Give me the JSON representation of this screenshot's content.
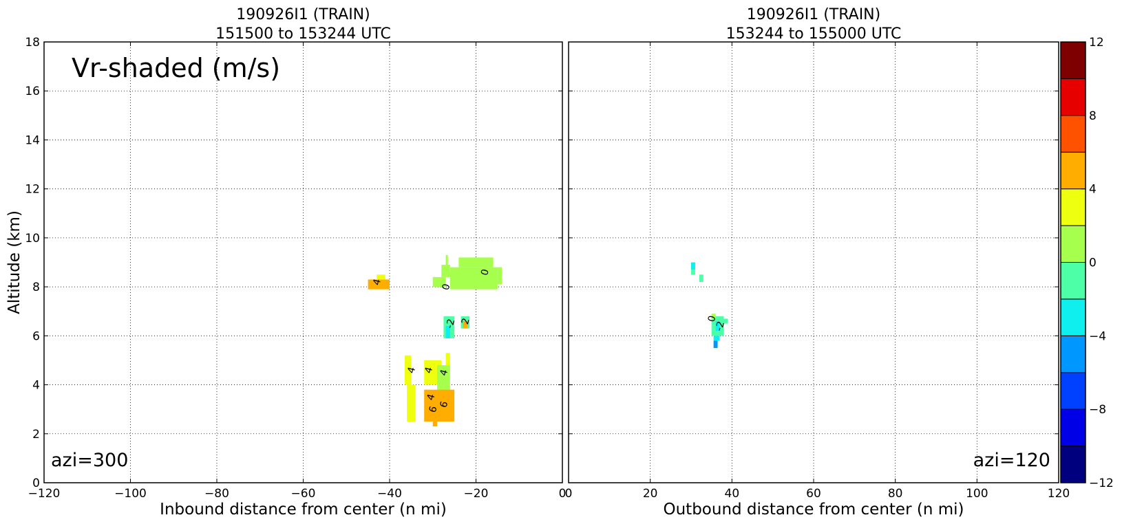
{
  "chart_data": [
    {
      "type": "heatmap",
      "title_line1": "190926I1 (TRAIN)",
      "title_line2": "151500 to 153244 UTC",
      "xlabel": "Inbound distance from center (n mi)",
      "ylabel": "Altitude (km)",
      "xlim": [
        -120,
        0
      ],
      "ylim": [
        0,
        18
      ],
      "xticks": [
        -120,
        -100,
        -80,
        -60,
        -40,
        -20,
        0
      ],
      "yticks": [
        0,
        2,
        4,
        6,
        8,
        10,
        12,
        14,
        16,
        18
      ],
      "grid": true,
      "annotation": "Vr-shaded (m/s)",
      "azimuth_label": "azi=300",
      "cells": [
        {
          "x0": -45,
          "x1": -40,
          "y0": 7.9,
          "y1": 8.3,
          "value": 5
        },
        {
          "x0": -43,
          "x1": -41,
          "y0": 8.3,
          "y1": 8.5,
          "value": 3
        },
        {
          "x0": -30,
          "x1": -27,
          "y0": 8.0,
          "y1": 8.4,
          "value": 1
        },
        {
          "x0": -28,
          "x1": -26,
          "y0": 8.4,
          "y1": 8.9,
          "value": 1
        },
        {
          "x0": -27,
          "x1": -26.5,
          "y0": 8.9,
          "y1": 9.3,
          "value": 1
        },
        {
          "x0": -26,
          "x1": -15,
          "y0": 7.9,
          "y1": 8.8,
          "value": 1
        },
        {
          "x0": -24,
          "x1": -16,
          "y0": 8.8,
          "y1": 9.2,
          "value": 1
        },
        {
          "x0": -15,
          "x1": -14,
          "y0": 8.1,
          "y1": 8.8,
          "value": 1
        },
        {
          "x0": -27.5,
          "x1": -25,
          "y0": 5.9,
          "y1": 6.8,
          "value": -1
        },
        {
          "x0": -27,
          "x1": -26,
          "y0": 5.9,
          "y1": 6.4,
          "value": -3
        },
        {
          "x0": -23.5,
          "x1": -21.5,
          "y0": 6.3,
          "y1": 6.8,
          "value": -1
        },
        {
          "x0": -23,
          "x1": -22,
          "y0": 6.3,
          "y1": 6.6,
          "value": 5
        },
        {
          "x0": -36.5,
          "x1": -35,
          "y0": 4.0,
          "y1": 5.2,
          "value": 3
        },
        {
          "x0": -36,
          "x1": -34,
          "y0": 2.5,
          "y1": 4.0,
          "value": 3
        },
        {
          "x0": -32,
          "x1": -28,
          "y0": 4.0,
          "y1": 5.0,
          "value": 3
        },
        {
          "x0": -29,
          "x1": -26,
          "y0": 3.5,
          "y1": 4.8,
          "value": 1
        },
        {
          "x0": -32,
          "x1": -25,
          "y0": 2.5,
          "y1": 3.8,
          "value": 5
        },
        {
          "x0": -30,
          "x1": -29,
          "y0": 2.3,
          "y1": 2.5,
          "value": 5
        },
        {
          "x0": -27,
          "x1": -26,
          "y0": 4.8,
          "y1": 5.3,
          "value": 3
        }
      ],
      "contour_labels": [
        {
          "x": -43,
          "y": 8.2,
          "text": "4"
        },
        {
          "x": -27,
          "y": 8.0,
          "text": "0"
        },
        {
          "x": -18,
          "y": 8.6,
          "text": "0"
        },
        {
          "x": -26,
          "y": 6.5,
          "text": "-2"
        },
        {
          "x": -22.5,
          "y": 6.6,
          "text": "2"
        },
        {
          "x": -35,
          "y": 4.6,
          "text": "4"
        },
        {
          "x": -31,
          "y": 4.6,
          "text": "4"
        },
        {
          "x": -30.5,
          "y": 3.5,
          "text": "4"
        },
        {
          "x": -27.5,
          "y": 4.5,
          "text": "4"
        },
        {
          "x": -30,
          "y": 3.0,
          "text": "6"
        },
        {
          "x": -27.5,
          "y": 3.2,
          "text": "6"
        }
      ]
    },
    {
      "type": "heatmap",
      "title_line1": "190926I1 (TRAIN)",
      "title_line2": "153244 to 155000 UTC",
      "xlabel": "Outbound distance from center (n mi)",
      "ylabel": "",
      "xlim": [
        0,
        120
      ],
      "ylim": [
        0,
        18
      ],
      "xticks": [
        0,
        20,
        40,
        60,
        80,
        100,
        120
      ],
      "yticks": [
        0,
        2,
        4,
        6,
        8,
        10,
        12,
        14,
        16,
        18
      ],
      "grid": true,
      "azimuth_label": "azi=120",
      "cells": [
        {
          "x0": 30,
          "x1": 31,
          "y0": 8.7,
          "y1": 9.0,
          "value": -3
        },
        {
          "x0": 30,
          "x1": 31,
          "y0": 8.5,
          "y1": 8.7,
          "value": -1
        },
        {
          "x0": 32,
          "x1": 33,
          "y0": 8.2,
          "y1": 8.5,
          "value": -1
        },
        {
          "x0": 35,
          "x1": 38,
          "y0": 6.0,
          "y1": 6.8,
          "value": -1
        },
        {
          "x0": 35,
          "x1": 36,
          "y0": 6.7,
          "y1": 6.9,
          "value": 1
        },
        {
          "x0": 38,
          "x1": 39,
          "y0": 6.5,
          "y1": 6.7,
          "value": -1
        },
        {
          "x0": 36,
          "x1": 37,
          "y0": 6.2,
          "y1": 6.6,
          "value": -3
        },
        {
          "x0": 35.5,
          "x1": 37,
          "y0": 5.8,
          "y1": 6.0,
          "value": -3
        },
        {
          "x0": 35.5,
          "x1": 36.5,
          "y0": 5.5,
          "y1": 5.8,
          "value": -5
        }
      ],
      "contour_labels": [
        {
          "x": 35,
          "y": 6.7,
          "text": "0"
        },
        {
          "x": 37,
          "y": 6.4,
          "text": "-2"
        }
      ]
    }
  ],
  "colorbar": {
    "levels": [
      -12,
      -10,
      -8,
      -6,
      -4,
      -2,
      0,
      2,
      4,
      6,
      8,
      10,
      12
    ],
    "colors": [
      "#00007f",
      "#0000e6",
      "#0040ff",
      "#0097ff",
      "#0ff0ee",
      "#4dffa6",
      "#a6ff4d",
      "#eeff0f",
      "#ffad00",
      "#ff5200",
      "#e60000",
      "#7f0000"
    ],
    "tick_labels": [
      "-12",
      "0",
      "4",
      "8",
      "12"
    ],
    "tick_label_texts": {
      "-12": "−12",
      "-8": "−8",
      "-4": "−4",
      "0": "0",
      "4": "4",
      "8": "8",
      "12": "12"
    }
  }
}
